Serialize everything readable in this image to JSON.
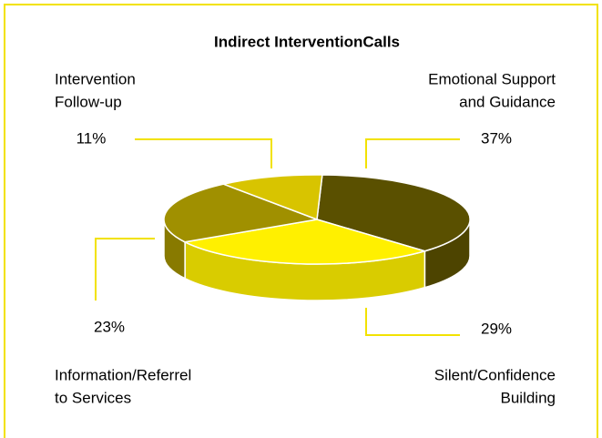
{
  "chart_data": {
    "type": "pie3d",
    "title": "Indirect InterventionCalls",
    "categories": [
      [
        "Emotional Support",
        "and Guidance"
      ],
      [
        "Silent/Confidence",
        "Building"
      ],
      [
        "Information/Referrel",
        "to Services"
      ],
      [
        "Intervention",
        "Follow-up"
      ]
    ],
    "values": [
      37,
      29,
      23,
      11
    ],
    "value_labels": [
      "37%",
      "29%",
      "23%",
      "11%"
    ],
    "colors": [
      "#5a5000",
      "#fff000",
      "#a09000",
      "#d8c400"
    ]
  }
}
